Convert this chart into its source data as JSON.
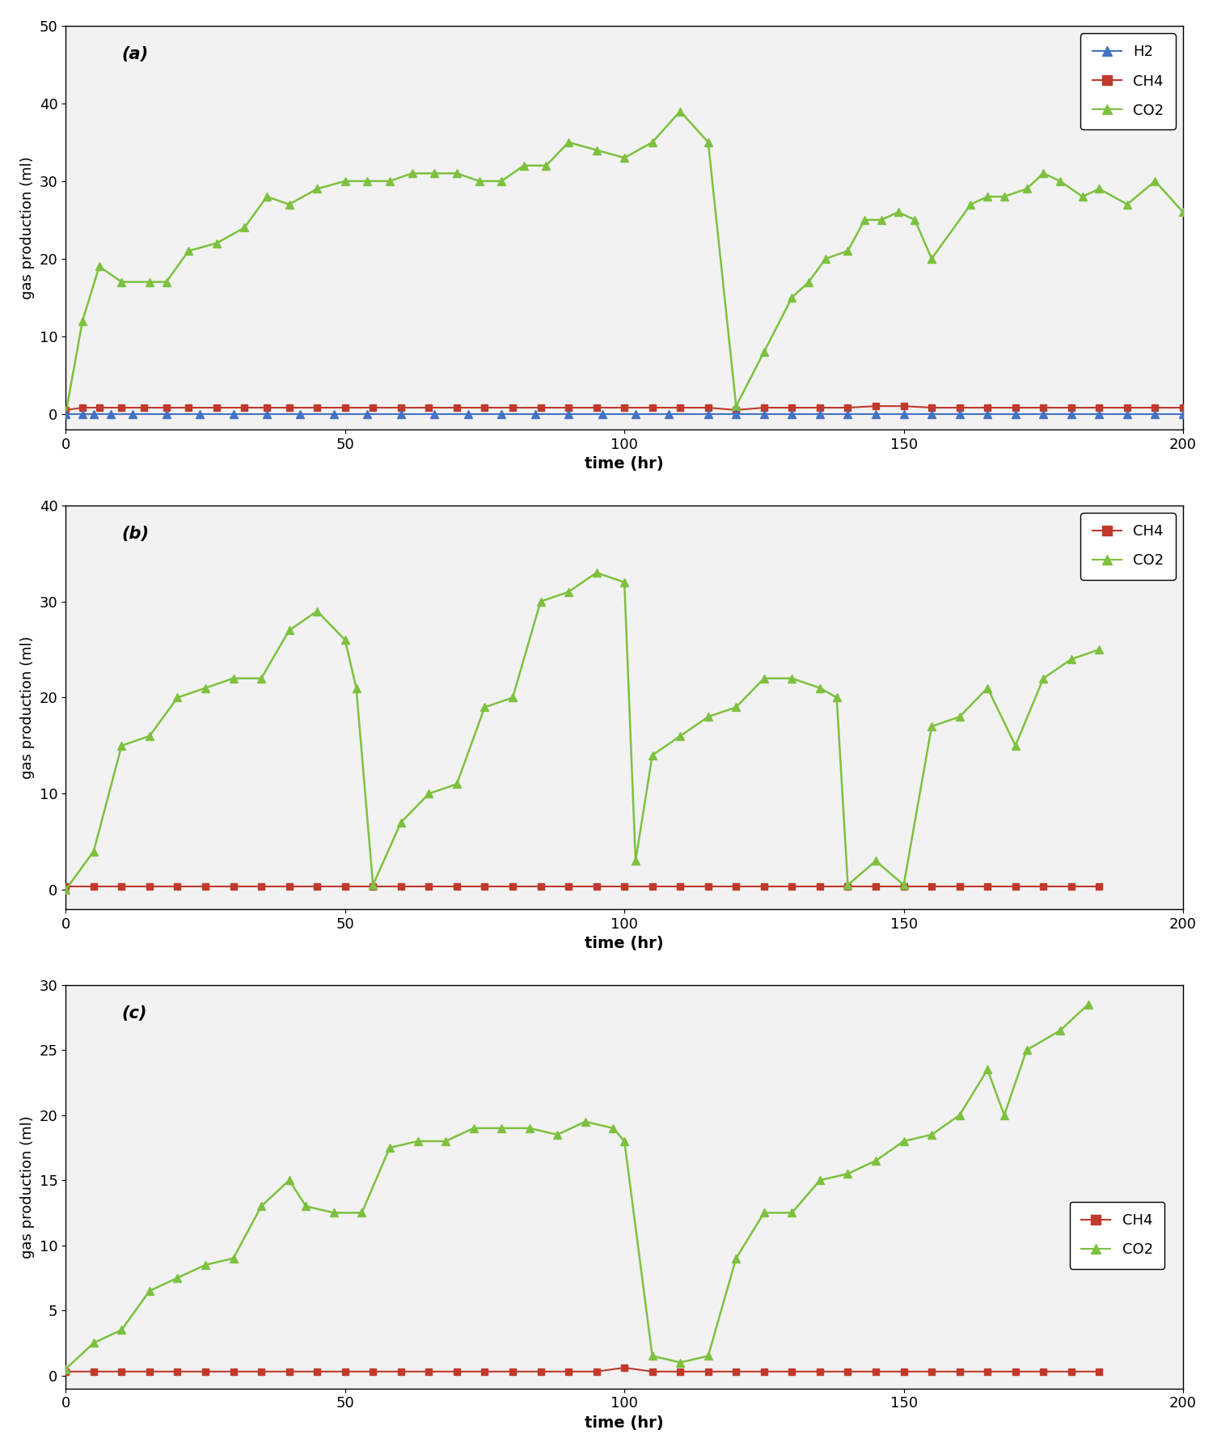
{
  "panel_a": {
    "title": "(a)",
    "ylim": [
      -2,
      50
    ],
    "yticks": [
      0,
      10,
      20,
      30,
      40,
      50
    ],
    "xlim": [
      0,
      200
    ],
    "xticks": [
      0,
      50,
      100,
      150,
      200
    ],
    "h2_x": [
      0,
      3,
      5,
      8,
      12,
      18,
      24,
      30,
      36,
      42,
      48,
      54,
      60,
      66,
      72,
      78,
      84,
      90,
      96,
      102,
      108,
      115,
      120,
      125,
      130,
      135,
      140,
      145,
      150,
      155,
      160,
      165,
      170,
      175,
      180,
      185,
      190,
      195,
      200
    ],
    "h2_y": [
      0,
      0,
      0,
      0,
      0,
      0,
      0,
      0,
      0,
      0,
      0,
      0,
      0,
      0,
      0,
      0,
      0,
      0,
      0,
      0,
      0,
      0,
      0,
      0,
      0,
      0,
      0,
      0,
      0,
      0,
      0,
      0,
      0,
      0,
      0,
      0,
      0,
      0,
      0
    ],
    "ch4_x": [
      0,
      3,
      6,
      10,
      14,
      18,
      22,
      27,
      32,
      36,
      40,
      45,
      50,
      55,
      60,
      65,
      70,
      75,
      80,
      85,
      90,
      95,
      100,
      105,
      110,
      115,
      120,
      125,
      130,
      135,
      140,
      145,
      150,
      155,
      160,
      165,
      170,
      175,
      180,
      185,
      190,
      195,
      200
    ],
    "ch4_y": [
      0.5,
      0.8,
      0.8,
      0.8,
      0.8,
      0.8,
      0.8,
      0.8,
      0.8,
      0.8,
      0.8,
      0.8,
      0.8,
      0.8,
      0.8,
      0.8,
      0.8,
      0.8,
      0.8,
      0.8,
      0.8,
      0.8,
      0.8,
      0.8,
      0.8,
      0.8,
      0.5,
      0.8,
      0.8,
      0.8,
      0.8,
      1.0,
      1.0,
      0.8,
      0.8,
      0.8,
      0.8,
      0.8,
      0.8,
      0.8,
      0.8,
      0.8,
      0.8
    ],
    "co2_x": [
      0,
      3,
      6,
      10,
      15,
      18,
      22,
      27,
      32,
      36,
      40,
      45,
      50,
      54,
      58,
      62,
      66,
      70,
      74,
      78,
      82,
      86,
      90,
      95,
      100,
      105,
      110,
      115,
      120,
      125,
      130,
      133,
      136,
      140,
      143,
      146,
      149,
      152,
      155,
      162,
      165,
      168,
      172,
      175,
      178,
      182,
      185,
      190,
      195,
      200
    ],
    "co2_y": [
      0,
      12,
      19,
      17,
      17,
      17,
      21,
      22,
      24,
      28,
      27,
      29,
      30,
      30,
      30,
      31,
      31,
      31,
      30,
      30,
      32,
      32,
      35,
      34,
      33,
      35,
      39,
      35,
      1,
      8,
      15,
      17,
      20,
      21,
      25,
      25,
      26,
      25,
      20,
      27,
      28,
      28,
      29,
      31,
      30,
      28,
      29,
      27,
      30,
      26
    ]
  },
  "panel_b": {
    "title": "(b)",
    "ylim": [
      -2,
      40
    ],
    "yticks": [
      0,
      10,
      20,
      30,
      40
    ],
    "xlim": [
      0,
      200
    ],
    "xticks": [
      0,
      50,
      100,
      150,
      200
    ],
    "ch4_x": [
      0,
      5,
      10,
      15,
      20,
      25,
      30,
      35,
      40,
      45,
      50,
      55,
      60,
      65,
      70,
      75,
      80,
      85,
      90,
      95,
      100,
      105,
      110,
      115,
      120,
      125,
      130,
      135,
      140,
      145,
      150,
      155,
      160,
      165,
      170,
      175,
      180,
      185
    ],
    "ch4_y": [
      0.3,
      0.3,
      0.3,
      0.3,
      0.3,
      0.3,
      0.3,
      0.3,
      0.3,
      0.3,
      0.3,
      0.3,
      0.3,
      0.3,
      0.3,
      0.3,
      0.3,
      0.3,
      0.3,
      0.3,
      0.3,
      0.3,
      0.3,
      0.3,
      0.3,
      0.3,
      0.3,
      0.3,
      0.3,
      0.3,
      0.3,
      0.3,
      0.3,
      0.3,
      0.3,
      0.3,
      0.3,
      0.3
    ],
    "co2_x": [
      0,
      5,
      10,
      15,
      20,
      25,
      30,
      35,
      40,
      45,
      50,
      52,
      55,
      60,
      65,
      70,
      75,
      80,
      85,
      90,
      95,
      100,
      102,
      105,
      110,
      115,
      120,
      125,
      130,
      135,
      138,
      140,
      145,
      150,
      155,
      160,
      165,
      170,
      175,
      180,
      185
    ],
    "co2_y": [
      0,
      4,
      15,
      16,
      20,
      21,
      22,
      22,
      27,
      29,
      26,
      21,
      0.5,
      7,
      10,
      11,
      19,
      20,
      30,
      31,
      33,
      32,
      3,
      14,
      16,
      18,
      19,
      22,
      22,
      21,
      20,
      0.5,
      3,
      0.5,
      17,
      18,
      21,
      15,
      22,
      24,
      25
    ]
  },
  "panel_c": {
    "title": "(c)",
    "ylim": [
      -1,
      30
    ],
    "yticks": [
      0,
      5,
      10,
      15,
      20,
      25,
      30
    ],
    "xlim": [
      0,
      200
    ],
    "xticks": [
      0,
      50,
      100,
      150,
      200
    ],
    "ch4_x": [
      0,
      5,
      10,
      15,
      20,
      25,
      30,
      35,
      40,
      45,
      50,
      55,
      60,
      65,
      70,
      75,
      80,
      85,
      90,
      95,
      100,
      105,
      110,
      115,
      120,
      125,
      130,
      135,
      140,
      145,
      150,
      155,
      160,
      165,
      170,
      175,
      180,
      185
    ],
    "ch4_y": [
      0.3,
      0.3,
      0.3,
      0.3,
      0.3,
      0.3,
      0.3,
      0.3,
      0.3,
      0.3,
      0.3,
      0.3,
      0.3,
      0.3,
      0.3,
      0.3,
      0.3,
      0.3,
      0.3,
      0.3,
      0.6,
      0.3,
      0.3,
      0.3,
      0.3,
      0.3,
      0.3,
      0.3,
      0.3,
      0.3,
      0.3,
      0.3,
      0.3,
      0.3,
      0.3,
      0.3,
      0.3,
      0.3
    ],
    "co2_x": [
      0,
      5,
      10,
      15,
      20,
      25,
      30,
      35,
      40,
      43,
      48,
      53,
      58,
      63,
      68,
      73,
      78,
      83,
      88,
      93,
      98,
      100,
      105,
      110,
      115,
      120,
      125,
      130,
      135,
      140,
      145,
      150,
      155,
      160,
      165,
      168,
      172,
      178,
      183
    ],
    "co2_y": [
      0.5,
      2.5,
      3.5,
      6.5,
      7.5,
      8.5,
      9,
      13,
      15,
      13,
      12.5,
      12.5,
      17.5,
      18,
      18,
      19,
      19,
      19,
      18.5,
      19.5,
      19,
      18,
      1.5,
      1,
      1.5,
      9,
      12.5,
      12.5,
      15,
      15.5,
      16.5,
      18,
      18.5,
      20,
      23.5,
      20,
      25,
      26.5,
      28.5
    ]
  },
  "colors": {
    "h2": "#4472c4",
    "ch4": "#c0392b",
    "co2": "#7dc13f"
  },
  "ylabel": "gas production (ml)",
  "xlabel": "time (hr)",
  "bg_color": "#f0f0f0"
}
